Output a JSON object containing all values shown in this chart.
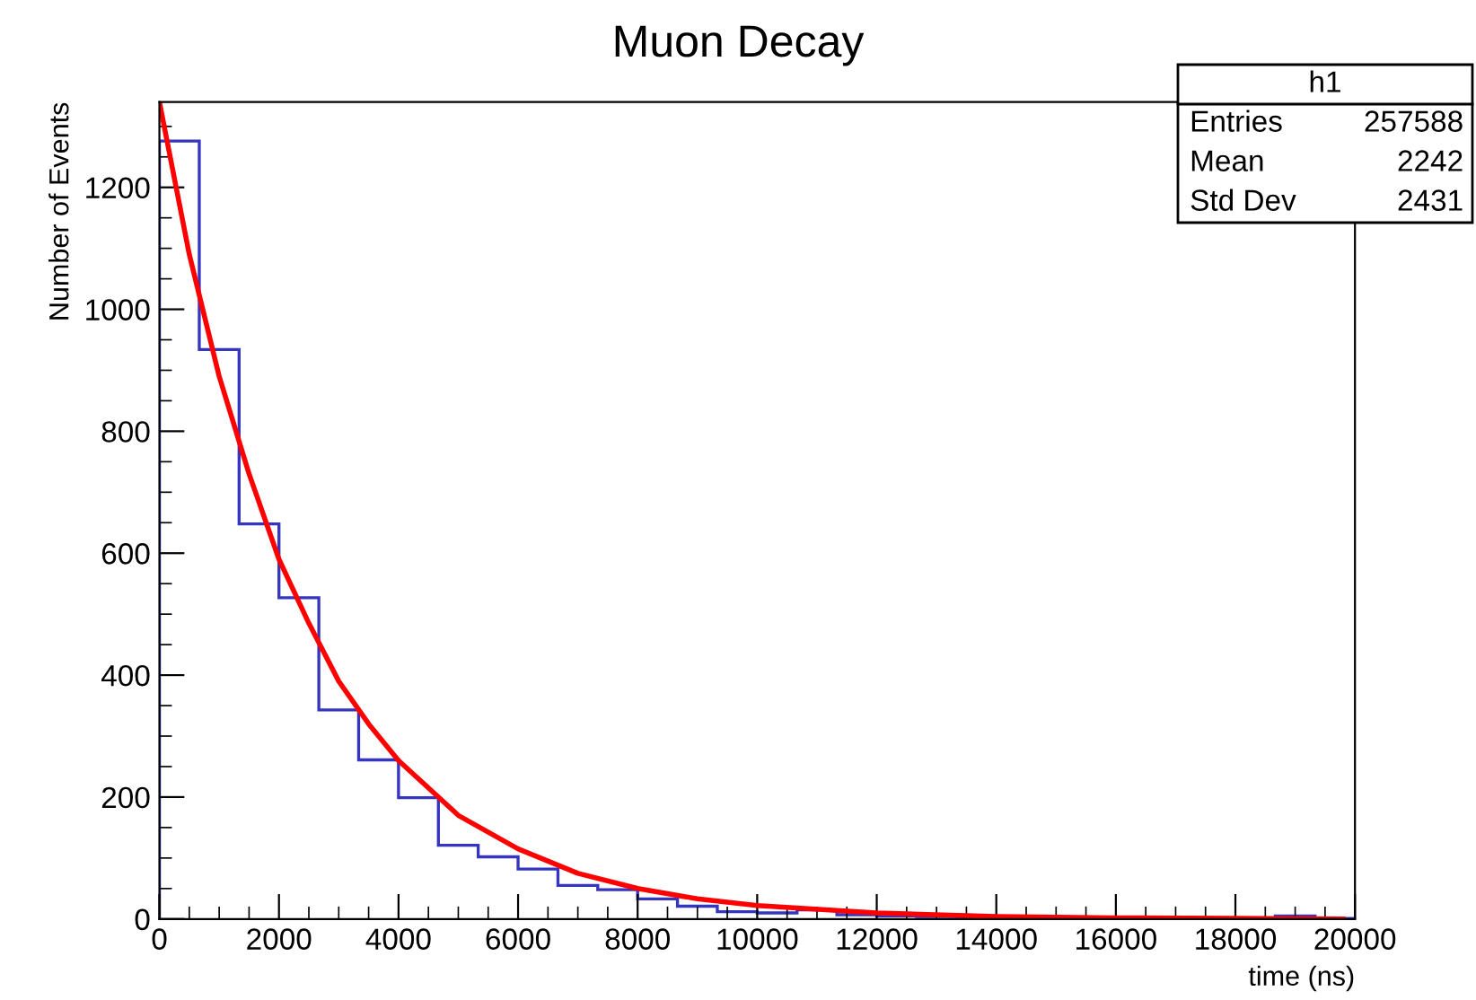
{
  "chart_data": {
    "type": "histogram",
    "title": "Muon Decay",
    "xlabel": "time (ns)",
    "ylabel": "Number of Events",
    "bins": [
      0,
      667,
      1333,
      2000,
      2667,
      3333,
      4000,
      4667,
      5333,
      6000,
      6667,
      7333,
      8000,
      8667,
      9333,
      10000,
      10667,
      11333,
      12000,
      12667,
      13333,
      14000,
      14667,
      15333,
      16000,
      16667,
      17333,
      18000,
      18667,
      19333,
      20000
    ],
    "values": [
      1276,
      934,
      648,
      527,
      343,
      261,
      199,
      121,
      102,
      82,
      55,
      48,
      33,
      21,
      12,
      10,
      15,
      7,
      5,
      4,
      3,
      2,
      2,
      2,
      1,
      1,
      1,
      1,
      5,
      1
    ],
    "color": "#3535c0",
    "series": [
      {
        "type": "line",
        "color": "#ff0000",
        "x": [
          0,
          500,
          1000,
          1500,
          2000,
          2500,
          3000,
          3500,
          4000,
          5000,
          6000,
          7000,
          8000,
          9000,
          10000,
          12000,
          14000,
          16000,
          18000,
          19800
        ],
        "values": [
          1340,
          1090,
          890,
          730,
          590,
          485,
          390,
          320,
          260,
          170,
          115,
          75,
          50,
          33,
          22,
          10,
          4,
          2,
          1,
          0
        ]
      }
    ],
    "xlim": [
      0,
      20000
    ],
    "ylim": [
      0,
      1340
    ],
    "xticks": [
      0,
      2000,
      4000,
      6000,
      8000,
      10000,
      12000,
      14000,
      16000,
      18000,
      20000
    ],
    "yticks": [
      0,
      200,
      400,
      600,
      800,
      1000,
      1200
    ],
    "grid": false,
    "legend": false,
    "annotations": [
      "h1",
      "Entries",
      "257588",
      "Mean",
      "2242",
      "Std Dev",
      "2431"
    ]
  }
}
